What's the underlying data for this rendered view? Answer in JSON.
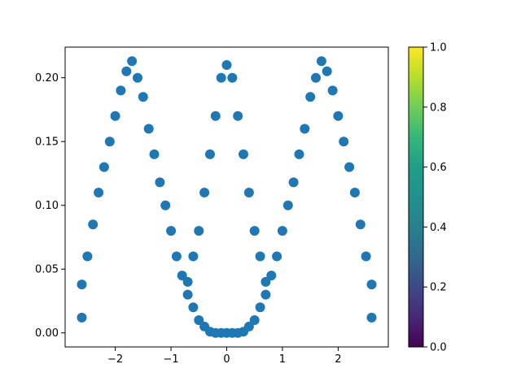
{
  "chart_data": {
    "type": "scatter",
    "title": "",
    "xlabel": "",
    "ylabel": "",
    "xlim": [
      -2.9,
      2.9
    ],
    "ylim": [
      -0.011,
      0.224
    ],
    "xticks": [
      -2,
      -1,
      0,
      1,
      2
    ],
    "yticks": [
      0.0,
      0.05,
      0.1,
      0.15,
      0.2
    ],
    "xtick_labels": [
      "−2",
      "−1",
      "0",
      "1",
      "2"
    ],
    "ytick_labels": [
      "0.00",
      "0.05",
      "0.10",
      "0.15",
      "0.20"
    ],
    "grid": false,
    "marker_color": "#1f77b4",
    "series": [
      {
        "description_points": [
          [
            -2.6,
            0.012
          ],
          [
            -2.6,
            0.038
          ],
          [
            -2.5,
            0.06
          ],
          [
            -2.4,
            0.085
          ],
          [
            -2.3,
            0.11
          ],
          [
            -2.2,
            0.13
          ],
          [
            -2.1,
            0.15
          ],
          [
            -2.0,
            0.17
          ],
          [
            -1.9,
            0.19
          ],
          [
            -1.8,
            0.205
          ],
          [
            -1.7,
            0.213
          ],
          [
            -1.6,
            0.2
          ],
          [
            -1.5,
            0.185
          ],
          [
            -1.4,
            0.16
          ],
          [
            -1.3,
            0.14
          ],
          [
            -1.2,
            0.118
          ],
          [
            -1.1,
            0.1
          ],
          [
            -1.0,
            0.08
          ],
          [
            -0.9,
            0.06
          ],
          [
            -0.8,
            0.045
          ],
          [
            -0.7,
            0.03
          ],
          [
            -0.6,
            0.02
          ],
          [
            -0.5,
            0.01
          ],
          [
            -0.4,
            0.005
          ],
          [
            -0.3,
            0.001
          ],
          [
            -0.2,
            0.0
          ],
          [
            -0.1,
            0.0
          ],
          [
            0.0,
            0.0
          ],
          [
            0.1,
            0.0
          ],
          [
            0.2,
            0.0
          ],
          [
            0.3,
            0.001
          ],
          [
            0.4,
            0.005
          ],
          [
            0.5,
            0.01
          ],
          [
            0.6,
            0.02
          ],
          [
            0.7,
            0.03
          ],
          [
            0.8,
            0.045
          ],
          [
            0.9,
            0.06
          ],
          [
            1.0,
            0.08
          ],
          [
            1.1,
            0.1
          ],
          [
            1.2,
            0.118
          ],
          [
            1.3,
            0.14
          ],
          [
            1.4,
            0.16
          ],
          [
            1.5,
            0.185
          ],
          [
            1.6,
            0.2
          ],
          [
            1.7,
            0.213
          ],
          [
            1.8,
            0.205
          ],
          [
            1.9,
            0.19
          ],
          [
            2.0,
            0.17
          ],
          [
            2.1,
            0.15
          ],
          [
            2.2,
            0.13
          ],
          [
            2.3,
            0.11
          ],
          [
            2.4,
            0.085
          ],
          [
            2.5,
            0.06
          ],
          [
            2.6,
            0.038
          ],
          [
            2.6,
            0.012
          ],
          [
            0.0,
            0.21
          ],
          [
            -0.1,
            0.2
          ],
          [
            0.1,
            0.2
          ],
          [
            -0.2,
            0.17
          ],
          [
            0.2,
            0.17
          ],
          [
            -0.3,
            0.14
          ],
          [
            0.3,
            0.14
          ],
          [
            -0.4,
            0.11
          ],
          [
            0.4,
            0.11
          ],
          [
            -0.5,
            0.08
          ],
          [
            0.5,
            0.08
          ],
          [
            -0.6,
            0.06
          ],
          [
            0.6,
            0.06
          ],
          [
            -0.7,
            0.04
          ],
          [
            0.7,
            0.04
          ]
        ]
      }
    ],
    "colorbar": {
      "colormap": "viridis",
      "range": [
        0.0,
        1.0
      ],
      "ticks": [
        0.0,
        0.2,
        0.4,
        0.6,
        0.8,
        1.0
      ],
      "tick_labels": [
        "0.0",
        "0.2",
        "0.4",
        "0.6",
        "0.8",
        "1.0"
      ]
    }
  }
}
